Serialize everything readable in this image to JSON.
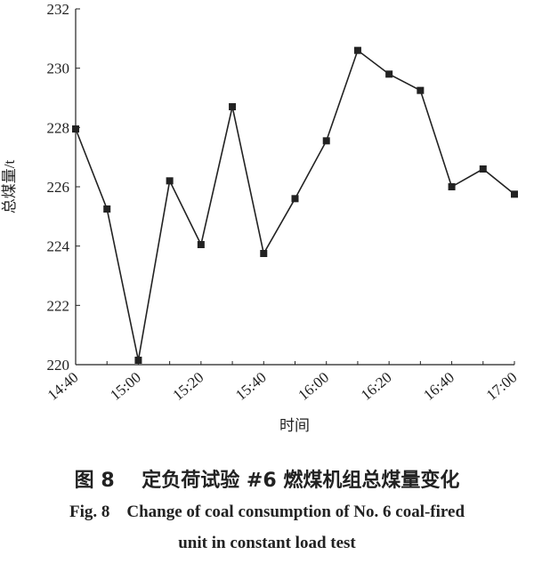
{
  "chart_data": {
    "type": "line",
    "x": [
      "14:40",
      "14:50",
      "15:00",
      "15:10",
      "15:20",
      "15:30",
      "15:40",
      "15:50",
      "16:00",
      "16:10",
      "16:20",
      "16:30",
      "16:40",
      "16:50",
      "17:00"
    ],
    "values": [
      227.95,
      225.25,
      220.15,
      226.2,
      224.05,
      228.7,
      223.75,
      225.6,
      227.55,
      230.6,
      229.8,
      229.25,
      226.0,
      226.6,
      225.75
    ],
    "x_tick_labels": [
      "14:40",
      "15:00",
      "15:20",
      "15:40",
      "16:00",
      "16:20",
      "16:40",
      "17:00"
    ],
    "y_ticks": [
      220,
      222,
      224,
      226,
      228,
      230,
      232
    ],
    "ylim": [
      220,
      232
    ],
    "xlabel": "时间",
    "ylabel": "总煤量/t",
    "line_color": "#222222",
    "marker": "square"
  },
  "caption": {
    "cn": "图 8    定负荷试验 #6 燃煤机组总煤量变化",
    "en_line1": "Fig. 8    Change of coal consumption of No. 6 coal-fired",
    "en_line2": "unit in constant load test"
  }
}
